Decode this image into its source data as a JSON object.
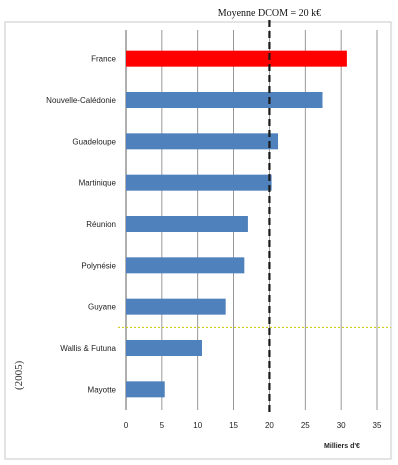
{
  "chart_data": {
    "type": "bar",
    "orientation": "horizontal",
    "categories": [
      "France",
      "Nouvelle-Calédonie",
      "Guadeloupe",
      "Martinique",
      "Réunion",
      "Polynésie",
      "Guyane",
      "Wallis & Futuna",
      "Mayotte"
    ],
    "values": [
      30.8,
      27.4,
      21.2,
      20.3,
      17.0,
      16.5,
      13.9,
      10.6,
      5.4
    ],
    "highlight_category": "France",
    "colors": {
      "highlight": "#ff0000",
      "bars": "#4f81bd",
      "reference_line": "#1a1a1a",
      "separator": "#c8c800",
      "grid": "#7f7f7f"
    },
    "xlabel": "Milliers d'€",
    "ylabel": "",
    "xlim": [
      0,
      35
    ],
    "xticks": [
      "0",
      "5",
      "10",
      "15",
      "20",
      "25",
      "30",
      "35"
    ],
    "grid": "vertical",
    "reference_line": {
      "value": 20,
      "label": "Moyenne DCOM = 20 k€"
    },
    "separator_after": "Guyane",
    "side_note": "(2005)"
  }
}
